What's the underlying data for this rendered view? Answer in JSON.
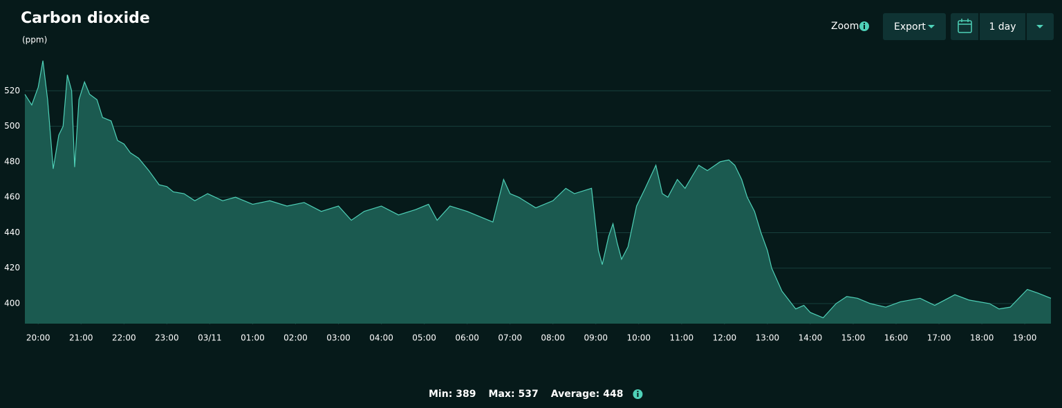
{
  "chart_data": {
    "type": "area",
    "title": "Carbon dioxide",
    "y_label": "(ppm)",
    "color": "#4fd1b8",
    "area_color": "#1b5a50",
    "grid": true,
    "x": [
      -0.31,
      -0.15,
      0,
      0.11,
      0.22,
      0.35,
      0.48,
      0.58,
      0.68,
      0.78,
      0.85,
      0.95,
      1.08,
      1.2,
      1.37,
      1.5,
      1.7,
      1.85,
      2.0,
      2.15,
      2.34,
      2.58,
      2.82,
      3.0,
      3.15,
      3.4,
      3.65,
      3.95,
      4.3,
      4.6,
      5.0,
      5.4,
      5.8,
      6.2,
      6.6,
      7.0,
      7.3,
      7.6,
      8.0,
      8.4,
      8.8,
      9.1,
      9.3,
      9.6,
      10.0,
      10.4,
      10.6,
      10.85,
      11.0,
      11.2,
      11.6,
      12.0,
      12.3,
      12.5,
      12.9,
      13.06,
      13.15,
      13.3,
      13.4,
      13.5,
      13.6,
      13.75,
      13.95,
      14.15,
      14.4,
      14.55,
      14.68,
      14.9,
      15.08,
      15.25,
      15.4,
      15.6,
      15.9,
      16.1,
      16.24,
      16.4,
      16.53,
      16.7,
      16.85,
      17.0,
      17.1,
      17.34,
      17.5,
      17.66,
      17.85,
      18.0,
      18.3,
      18.6,
      18.85,
      19.1,
      19.4,
      19.76,
      20.1,
      20.56,
      20.9,
      21.37,
      21.7,
      22.18,
      22.4,
      22.66,
      23.06,
      23.3,
      23.61
    ],
    "values": [
      518,
      512,
      522,
      537,
      515,
      476,
      495,
      500,
      529,
      520,
      477,
      515,
      525,
      518,
      515,
      505,
      503,
      492,
      490,
      485,
      482,
      475,
      467,
      466,
      463,
      462,
      458,
      462,
      458,
      460,
      456,
      458,
      455,
      457,
      452,
      455,
      447,
      452,
      455,
      450,
      453,
      456,
      447,
      455,
      452,
      448,
      446,
      470,
      462,
      460,
      454,
      458,
      465,
      462,
      465,
      430,
      422,
      438,
      445,
      434,
      425,
      432,
      455,
      465,
      478,
      462,
      460,
      470,
      465,
      472,
      478,
      475,
      480,
      481,
      478,
      470,
      460,
      452,
      440,
      430,
      420,
      407,
      402,
      397,
      399,
      395,
      392,
      400,
      404,
      403,
      400,
      398,
      401,
      403,
      399,
      405,
      402,
      400,
      397,
      398,
      408,
      406,
      403
    ],
    "xlim": [
      -0.31,
      23.61
    ],
    "xticks": [
      {
        "value": 0,
        "label": "20:00"
      },
      {
        "value": 1,
        "label": "21:00"
      },
      {
        "value": 2,
        "label": "22:00"
      },
      {
        "value": 3,
        "label": "23:00"
      },
      {
        "value": 4,
        "label": "03/11"
      },
      {
        "value": 5,
        "label": "01:00"
      },
      {
        "value": 6,
        "label": "02:00"
      },
      {
        "value": 7,
        "label": "03:00"
      },
      {
        "value": 8,
        "label": "04:00"
      },
      {
        "value": 9,
        "label": "05:00"
      },
      {
        "value": 10,
        "label": "06:00"
      },
      {
        "value": 11,
        "label": "07:00"
      },
      {
        "value": 12,
        "label": "08:00"
      },
      {
        "value": 13,
        "label": "09:00"
      },
      {
        "value": 14,
        "label": "10:00"
      },
      {
        "value": 15,
        "label": "11:00"
      },
      {
        "value": 16,
        "label": "12:00"
      },
      {
        "value": 17,
        "label": "13:00"
      },
      {
        "value": 18,
        "label": "14:00"
      },
      {
        "value": 19,
        "label": "15:00"
      },
      {
        "value": 20,
        "label": "16:00"
      },
      {
        "value": 21,
        "label": "17:00"
      },
      {
        "value": 22,
        "label": "18:00"
      },
      {
        "value": 23,
        "label": "19:00"
      }
    ],
    "ylim": [
      388.7,
      540
    ],
    "yticks": [
      400,
      420,
      440,
      460,
      480,
      500,
      520
    ]
  },
  "controls": {
    "zoom": "Zoom",
    "export": "Export",
    "range": "1 day"
  },
  "stats": [
    {
      "label": "Min:",
      "value": 389
    },
    {
      "label": "Max:",
      "value": 537
    },
    {
      "label": "Average:",
      "value": 448
    }
  ]
}
